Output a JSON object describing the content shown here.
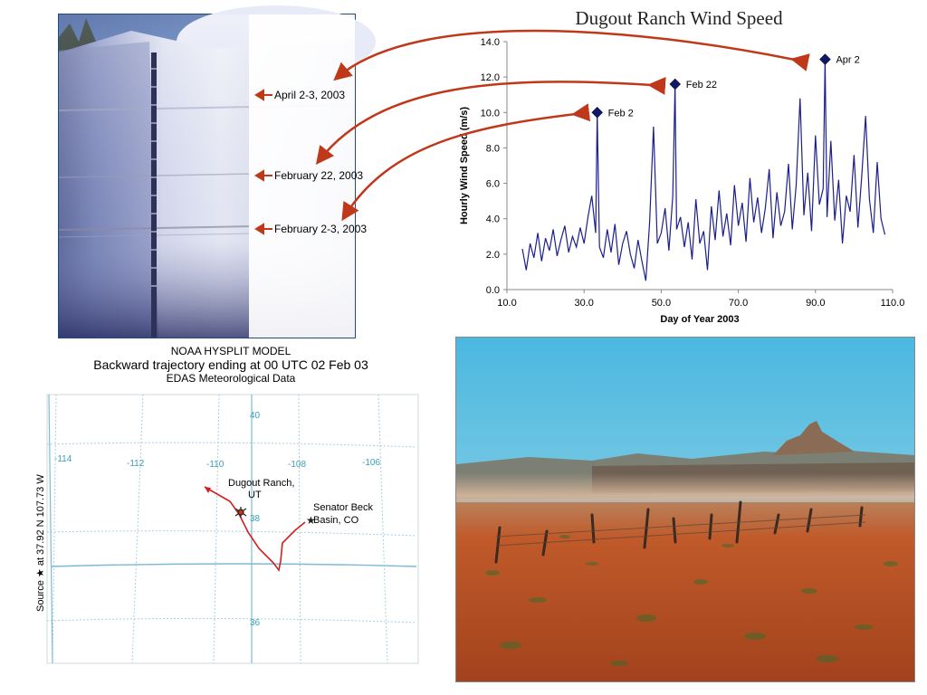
{
  "snowpit": {
    "labels": [
      "April 2-3, 2003",
      "February 22, 2003",
      "February 2-3, 2003"
    ]
  },
  "wind_chart": {
    "title": "Dugout Ranch Wind Speed"
  },
  "hysplit": {
    "title_line1": "NOAA HYSPLIT MODEL",
    "title_line2": "Backward trajectory ending at 00 UTC 02 Feb 03",
    "title_line3": "EDAS Meteorological Data",
    "lon_labels": [
      "-114",
      "-112",
      "-110",
      "-108",
      "-106"
    ],
    "lat_labels": [
      "40",
      "38",
      "36"
    ],
    "side_label": "Source ★ at 37.92 N 107.73 W",
    "dugout_label_1": "Dugout Ranch,",
    "dugout_label_2": "UT",
    "senator_label_1": "Senator Beck",
    "senator_label_2": "Basin, CO"
  },
  "chart_data": {
    "type": "line",
    "title": "Dugout Ranch Wind Speed",
    "xlabel": "Day of Year 2003",
    "ylabel": "Hourly Wind Speed (m/s)",
    "xlim": [
      10,
      110
    ],
    "ylim": [
      0,
      14
    ],
    "x_ticks": [
      "10.0",
      "30.0",
      "50.0",
      "70.0",
      "90.0",
      "110.0"
    ],
    "y_ticks": [
      "0.0",
      "2.0",
      "4.0",
      "6.0",
      "8.0",
      "10.0",
      "12.0",
      "14.0"
    ],
    "series": [
      {
        "x": [
          14,
          15,
          16,
          17,
          18,
          19,
          20,
          21,
          22,
          23,
          24,
          25,
          26,
          27,
          28,
          29,
          30,
          31,
          32,
          33,
          33.4,
          34,
          35,
          36,
          37,
          38,
          39,
          40,
          41,
          42,
          43,
          44,
          45,
          46,
          47,
          48,
          49,
          50,
          51,
          52,
          53,
          53.6,
          54,
          55,
          56,
          57,
          58,
          59,
          60,
          61,
          62,
          63,
          64,
          65,
          66,
          67,
          68,
          69,
          70,
          71,
          72,
          73,
          74,
          75,
          76,
          77,
          78,
          79,
          80,
          81,
          82,
          83,
          84,
          85,
          86,
          87,
          88,
          89,
          90,
          91,
          92,
          92.5,
          93,
          94,
          95,
          96,
          97,
          98,
          99,
          100,
          101,
          102,
          103,
          104,
          105,
          106,
          107,
          108
        ],
        "y": [
          2.3,
          1.1,
          2.6,
          1.8,
          3.2,
          1.6,
          2.9,
          2.2,
          3.4,
          1.9,
          2.8,
          3.6,
          2.1,
          3.0,
          2.4,
          3.5,
          2.6,
          4.1,
          5.3,
          3.2,
          10.0,
          2.4,
          1.8,
          3.4,
          2.1,
          3.7,
          1.4,
          2.6,
          3.3,
          2.0,
          1.2,
          2.8,
          1.6,
          0.5,
          3.8,
          9.2,
          2.6,
          3.2,
          4.6,
          2.2,
          5.3,
          11.6,
          3.4,
          4.1,
          2.4,
          3.8,
          1.7,
          5.1,
          2.6,
          3.3,
          1.1,
          4.7,
          2.8,
          5.6,
          3.0,
          4.3,
          2.5,
          5.9,
          3.6,
          4.9,
          2.7,
          6.3,
          3.8,
          5.2,
          3.2,
          4.6,
          6.8,
          2.9,
          5.5,
          3.6,
          4.4,
          7.1,
          3.4,
          5.9,
          10.8,
          4.2,
          6.6,
          3.3,
          8.7,
          4.8,
          5.7,
          13.0,
          4.1,
          8.4,
          3.9,
          6.2,
          2.6,
          5.3,
          4.4,
          7.6,
          3.5,
          6.4,
          9.8,
          5.1,
          3.2,
          7.2,
          4.0,
          3.1
        ]
      }
    ],
    "annotations": [
      {
        "label": "Feb 2",
        "x": 33.4,
        "y": 10.0
      },
      {
        "label": "Feb 22",
        "x": 53.6,
        "y": 11.6
      },
      {
        "label": "Apr 2",
        "x": 92.5,
        "y": 13.0
      }
    ],
    "line_color": "#1c1f8a",
    "marker_color": "#0d1a6b",
    "arrow_color": "#c0381a",
    "grid": false
  }
}
